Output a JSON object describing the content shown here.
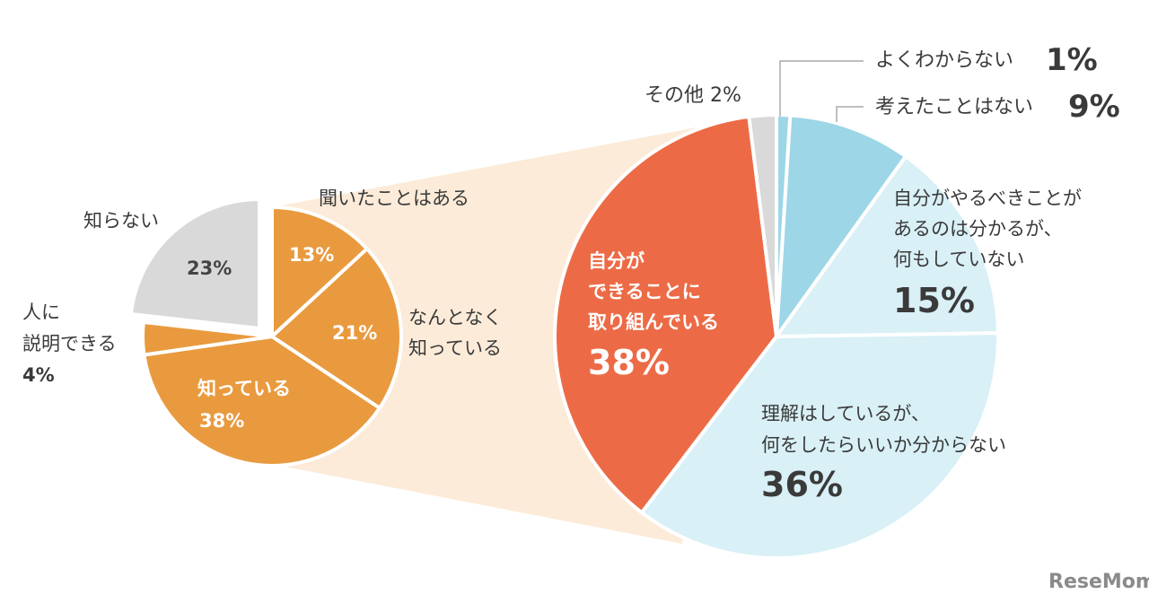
{
  "chart_data": [
    {
      "type": "pie",
      "slices": [
        {
          "label": "聞いたことはある",
          "value": 13,
          "value_label": "13%",
          "color": "#E99A3E"
        },
        {
          "label": "なんとなく知っている",
          "value": 21,
          "value_label": "21%",
          "color": "#E99A3E"
        },
        {
          "label": "知っている",
          "value": 38,
          "value_label": "38%",
          "color": "#E99A3E"
        },
        {
          "label": "人に説明できる",
          "value": 4,
          "value_label": "4%",
          "color": "#E99A3E"
        },
        {
          "label": "知らない",
          "value": 23,
          "value_label": "23%",
          "color": "#D9D9D9",
          "exploded": true
        }
      ],
      "labels": {
        "heard": "聞いたことはある",
        "somewhat_1": "なんとなく",
        "somewhat_2": "知っている",
        "know": "知っている",
        "explain_1": "人に",
        "explain_2": "説明できる",
        "dont_know": "知らない"
      },
      "start": "top",
      "direction": "clockwise"
    },
    {
      "type": "pie",
      "slices": [
        {
          "label": "よくわからない",
          "value": 1,
          "value_label": "1%",
          "color": "#9DD6E7"
        },
        {
          "label": "考えたことはない",
          "value": 9,
          "value_label": "9%",
          "color": "#9DD6E7"
        },
        {
          "label": "自分がやるべきことがあるのは分かるが、何もしていない",
          "value": 15,
          "value_label": "15%",
          "color": "#D8F0F6"
        },
        {
          "label": "理解はしているが、何をしたらいいか分からない",
          "value": 36,
          "value_label": "36%",
          "color": "#D8F0F6"
        },
        {
          "label": "自分ができることに取り組んでいる",
          "value": 38,
          "value_label": "38%",
          "color": "#EC6B46"
        },
        {
          "label": "その他",
          "value": 2,
          "value_label": "2%",
          "color": "#D9D9D9"
        }
      ],
      "labels": {
        "unsure": "よくわからない",
        "never": "考えたことはない",
        "aware_1": "自分がやるべきことが",
        "aware_2": "あるのは分かるが、",
        "aware_3": "何もしていない",
        "understand_1": "理解はしているが、",
        "understand_2": "何をしたらいいか分からない",
        "doing_1": "自分が",
        "doing_2": "できることに",
        "doing_3": "取り組んでいる",
        "other": "その他 2%"
      },
      "start": "top",
      "direction": "clockwise",
      "expands_from": "知っている"
    }
  ],
  "connector_color": "#FCEBD8",
  "logo": "ReseMom"
}
